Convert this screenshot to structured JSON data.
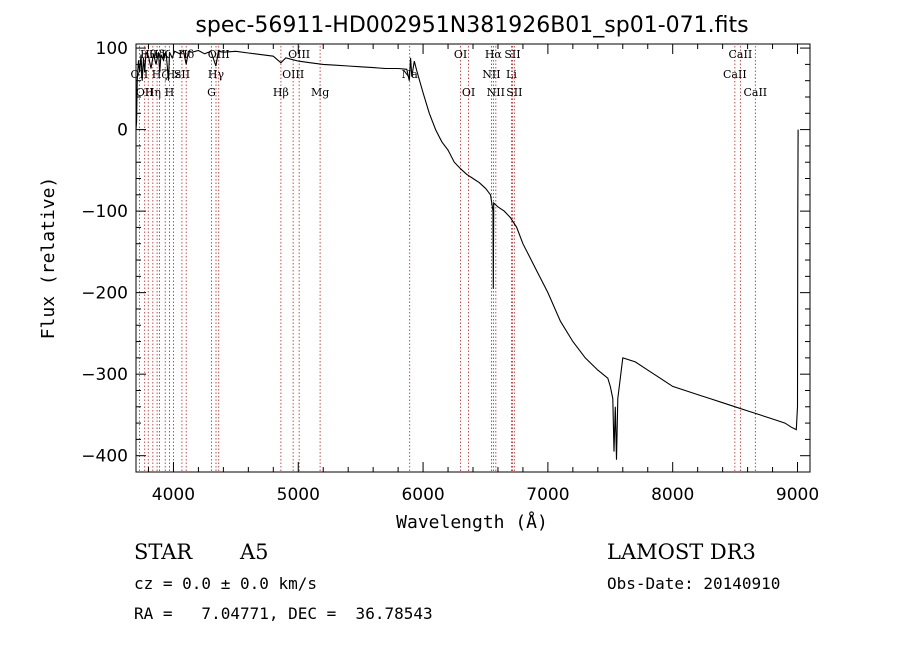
{
  "chart_data": {
    "type": "line",
    "title": "spec-56911-HD002951N381926B01_sp01-071.fits",
    "xlabel": "Wavelength (Å)",
    "ylabel": "Flux (relative)",
    "xlim": [
      3700,
      9100
    ],
    "ylim": [
      -420,
      105
    ],
    "xticks": [
      4000,
      5000,
      6000,
      7000,
      8000,
      9000
    ],
    "yticks": [
      100,
      0,
      -100,
      -200,
      -300,
      -400
    ],
    "series": [
      {
        "name": "spectrum",
        "points": [
          [
            3700,
            0
          ],
          [
            3705,
            10
          ],
          [
            3710,
            60
          ],
          [
            3720,
            85
          ],
          [
            3730,
            70
          ],
          [
            3740,
            92
          ],
          [
            3750,
            60
          ],
          [
            3760,
            88
          ],
          [
            3770,
            70
          ],
          [
            3780,
            95
          ],
          [
            3800,
            90
          ],
          [
            3820,
            75
          ],
          [
            3840,
            93
          ],
          [
            3860,
            80
          ],
          [
            3880,
            95
          ],
          [
            3890,
            70
          ],
          [
            3900,
            92
          ],
          [
            3920,
            85
          ],
          [
            3940,
            96
          ],
          [
            3960,
            60
          ],
          [
            3968,
            95
          ],
          [
            3990,
            88
          ],
          [
            4010,
            96
          ],
          [
            4050,
            93
          ],
          [
            4080,
            97
          ],
          [
            4102,
            80
          ],
          [
            4120,
            96
          ],
          [
            4150,
            95
          ],
          [
            4200,
            97
          ],
          [
            4250,
            93
          ],
          [
            4300,
            96
          ],
          [
            4340,
            78
          ],
          [
            4360,
            96
          ],
          [
            4400,
            95
          ],
          [
            4500,
            96
          ],
          [
            4600,
            94
          ],
          [
            4700,
            92
          ],
          [
            4800,
            90
          ],
          [
            4861,
            82
          ],
          [
            4900,
            88
          ],
          [
            5000,
            84
          ],
          [
            5100,
            82
          ],
          [
            5200,
            80
          ],
          [
            5300,
            79
          ],
          [
            5400,
            78
          ],
          [
            5500,
            77
          ],
          [
            5600,
            76
          ],
          [
            5700,
            75
          ],
          [
            5800,
            75
          ],
          [
            5870,
            74
          ],
          [
            5890,
            60
          ],
          [
            5900,
            88
          ],
          [
            5910,
            65
          ],
          [
            5930,
            84
          ],
          [
            5950,
            72
          ],
          [
            6000,
            45
          ],
          [
            6050,
            20
          ],
          [
            6100,
            0
          ],
          [
            6150,
            -15
          ],
          [
            6200,
            -25
          ],
          [
            6250,
            -40
          ],
          [
            6300,
            -48
          ],
          [
            6350,
            -55
          ],
          [
            6400,
            -60
          ],
          [
            6450,
            -65
          ],
          [
            6500,
            -72
          ],
          [
            6540,
            -80
          ],
          [
            6560,
            -100
          ],
          [
            6563,
            -195
          ],
          [
            6566,
            -90
          ],
          [
            6600,
            -95
          ],
          [
            6650,
            -100
          ],
          [
            6700,
            -108
          ],
          [
            6750,
            -120
          ],
          [
            6800,
            -140
          ],
          [
            6850,
            -155
          ],
          [
            6900,
            -170
          ],
          [
            7000,
            -200
          ],
          [
            7100,
            -235
          ],
          [
            7200,
            -260
          ],
          [
            7300,
            -280
          ],
          [
            7400,
            -295
          ],
          [
            7480,
            -305
          ],
          [
            7500,
            -315
          ],
          [
            7520,
            -330
          ],
          [
            7530,
            -395
          ],
          [
            7540,
            -340
          ],
          [
            7550,
            -405
          ],
          [
            7560,
            -330
          ],
          [
            7600,
            -280
          ],
          [
            7700,
            -285
          ],
          [
            7800,
            -295
          ],
          [
            7900,
            -305
          ],
          [
            8000,
            -315
          ],
          [
            8100,
            -320
          ],
          [
            8200,
            -325
          ],
          [
            8300,
            -330
          ],
          [
            8400,
            -335
          ],
          [
            8500,
            -340
          ],
          [
            8600,
            -345
          ],
          [
            8700,
            -350
          ],
          [
            8800,
            -355
          ],
          [
            8900,
            -360
          ],
          [
            8950,
            -365
          ],
          [
            8990,
            -368
          ],
          [
            9000,
            -340
          ],
          [
            9002,
            -100
          ],
          [
            9005,
            0
          ]
        ]
      }
    ],
    "lines": [
      {
        "wl": 3727,
        "label": "OII",
        "row": 1
      },
      {
        "wl": 3770,
        "label": "OII",
        "row": 2
      },
      {
        "wl": 3798,
        "label": "Hθ",
        "row": 0
      },
      {
        "wl": 3835,
        "label": "Hη",
        "row": 2
      },
      {
        "wl": 3869,
        "label": "Hδ",
        "row": 0
      },
      {
        "wl": 3889,
        "label": "Hζ",
        "row": 1
      },
      {
        "wl": 3934,
        "label": "K",
        "row": 0
      },
      {
        "wl": 3968,
        "label": "H",
        "row": 2
      },
      {
        "wl": 4000,
        "label": "Hε",
        "row": 1
      },
      {
        "wl": 4068,
        "label": "SII",
        "row": 1
      },
      {
        "wl": 4102,
        "label": "Hδ",
        "row": 0
      },
      {
        "wl": 4305,
        "label": "G",
        "row": 2
      },
      {
        "wl": 4341,
        "label": "Hγ",
        "row": 1
      },
      {
        "wl": 4363,
        "label": "OIII",
        "row": 0
      },
      {
        "wl": 4861,
        "label": "Hβ",
        "row": 2
      },
      {
        "wl": 4959,
        "label": "OIII",
        "row": 1
      },
      {
        "wl": 5007,
        "label": "OIII",
        "row": 0
      },
      {
        "wl": 5175,
        "label": "Mg",
        "row": 2
      },
      {
        "wl": 5893,
        "label": "Na",
        "row": 1
      },
      {
        "wl": 6300,
        "label": "OI",
        "row": 0
      },
      {
        "wl": 6364,
        "label": "OI",
        "row": 2
      },
      {
        "wl": 6548,
        "label": "NII",
        "row": 1
      },
      {
        "wl": 6563,
        "label": "Hα",
        "row": 0
      },
      {
        "wl": 6583,
        "label": "NII",
        "row": 2
      },
      {
        "wl": 6708,
        "label": "Li",
        "row": 1
      },
      {
        "wl": 6716,
        "label": "SII",
        "row": 0
      },
      {
        "wl": 6731,
        "label": "SII",
        "row": 2
      },
      {
        "wl": 8498,
        "label": "CaII",
        "row": 1
      },
      {
        "wl": 8542,
        "label": "CaII",
        "row": 0
      },
      {
        "wl": 8662,
        "label": "CaII",
        "row": 2
      }
    ]
  },
  "info": {
    "class": "STAR",
    "subclass": "A5",
    "survey": "LAMOST DR3",
    "cz": "cz = 0.0 ± 0.0 km/s",
    "obsdate": "Obs-Date: 20140910",
    "radec": "RA =   7.04771, DEC =  36.78543"
  },
  "colors": {
    "line_marker": "#b22222",
    "spectrum": "#000000"
  }
}
